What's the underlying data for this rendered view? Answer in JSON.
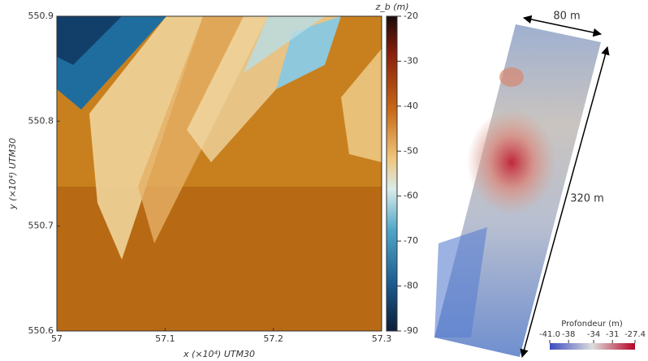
{
  "chart_data": [
    {
      "type": "heatmap",
      "xlabel": "x (×10⁴) UTM30",
      "ylabel": "y (×10⁴) UTM30",
      "xlim": [
        57,
        57.3
      ],
      "xticks": [
        57,
        57.1,
        57.2,
        57.3
      ],
      "ylim": [
        550.6,
        550.9
      ],
      "yticks": [
        550.6,
        550.7,
        550.8,
        550.9
      ],
      "colorbar": {
        "label": "z_b (m)",
        "lim": [
          -90,
          -20
        ],
        "ticks": [
          -20,
          -30,
          -40,
          -50,
          -60,
          -70,
          -80,
          -90
        ]
      }
    },
    {
      "type": "render",
      "width_label": "80 m",
      "length_label": "320 m",
      "colorbar": {
        "label": "Profondeur (m)",
        "lim": [
          -41,
          -27.4
        ],
        "ticks": [
          {
            "value": -41,
            "label": "-41.0"
          },
          -38,
          -34,
          -31,
          -27.4
        ]
      }
    }
  ]
}
